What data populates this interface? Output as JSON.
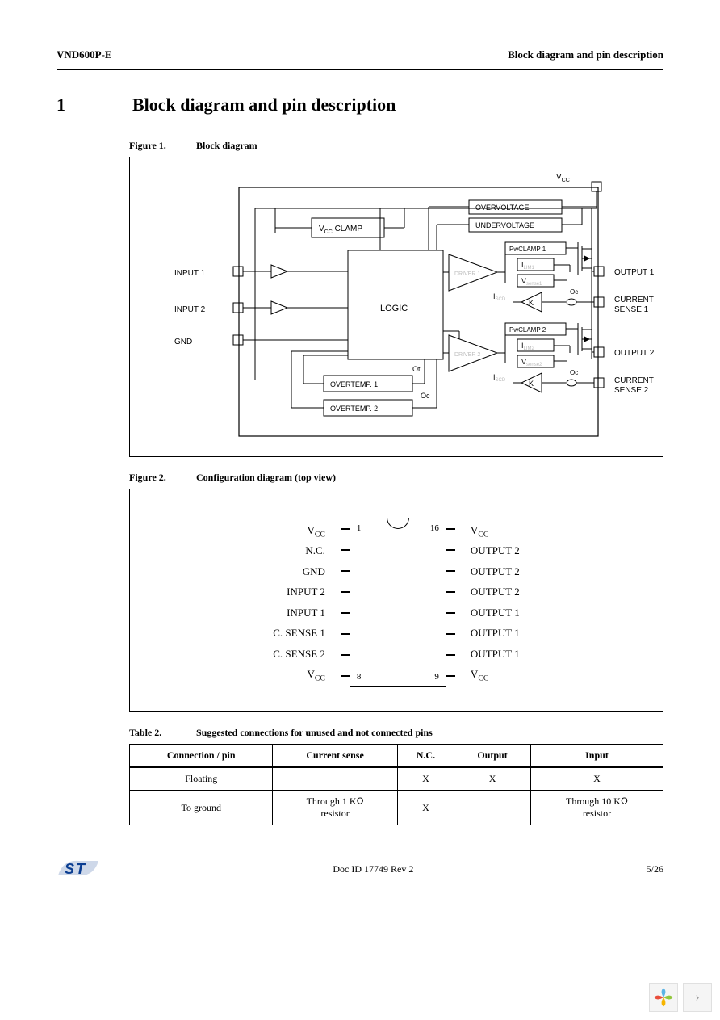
{
  "header": {
    "left": "VND600P-E",
    "right": "Block diagram and pin description"
  },
  "section": {
    "num": "1",
    "title": "Block diagram and pin description"
  },
  "figure1": {
    "label": "Figure 1.",
    "title": "Block diagram",
    "colors": {
      "line": "#000000",
      "faint": "#bbbbbb",
      "bg": "#ffffff"
    },
    "labels": {
      "vcc_top": "V",
      "vcc_sub": "CC",
      "vcc_clamp": "V",
      "vcc_clamp_sub": "CC",
      "clamp_word": "CLAMP",
      "overvoltage": "OVERVOLTAGE",
      "undervoltage": "UNDERVOLTAGE",
      "logic": "LOGIC",
      "driver1": "DRIVER 1",
      "driver2": "DRIVER 2",
      "pwclamp1": "PwCLAMP 1",
      "pwclamp2": "PwCLAMP 2",
      "i_lim1": "I",
      "i_lim1_sub": "LIM1",
      "i_lim2": "I",
      "i_lim2_sub": "LIM2",
      "v_sense1": "V",
      "v_sense1_sub": "sense1",
      "v_sense2": "V",
      "v_sense2_sub": "sense2",
      "i_scd1": "I",
      "i_scd1_sub": "SCD",
      "i_scd2": "I",
      "i_scd2_sub": "SCD",
      "k1": "K",
      "k2": "K",
      "overtemp1": "OVERTEMP. 1",
      "overtemp2": "OVERTEMP. 2",
      "ot": "Ot",
      "oc1": "Oc",
      "oc2": "Oc",
      "input1": "INPUT 1",
      "input2": "INPUT 2",
      "gnd": "GND",
      "output1": "OUTPUT 1",
      "output2": "OUTPUT 2",
      "csense1a": "CURRENT",
      "csense1b": "SENSE 1",
      "csense2a": "CURRENT",
      "csense2b": "SENSE 2"
    }
  },
  "figure2": {
    "label": "Figure 2.",
    "title": "Configuration diagram (top view)",
    "left_pins": [
      "V<sub>CC</sub>",
      "N.C.",
      "GND",
      "INPUT 2",
      "INPUT 1",
      "C. SENSE 1",
      "C. SENSE 2",
      "V<sub>CC</sub>"
    ],
    "right_pins": [
      "V<sub>CC</sub>",
      "OUTPUT 2",
      "OUTPUT 2",
      "OUTPUT 2",
      "OUTPUT 1",
      "OUTPUT 1",
      "OUTPUT 1",
      "V<sub>CC</sub>"
    ],
    "corner_nums": {
      "tl": "1",
      "tr": "16",
      "bl": "8",
      "br": "9"
    },
    "pin_count_per_side": 8
  },
  "table2": {
    "label": "Table 2.",
    "title": "Suggested connections for unused and not connected pins",
    "columns": [
      "Connection / pin",
      "Current sense",
      "N.C.",
      "Output",
      "Input"
    ],
    "rows": [
      {
        "c0": "Floating",
        "c1": "",
        "c2": "X",
        "c3": "X",
        "c4": "X"
      },
      {
        "c0": "To ground",
        "c1": "Through 1 KΩ resistor",
        "c2": "X",
        "c3": "",
        "c4": "Through 10 KΩ resistor"
      }
    ]
  },
  "footer": {
    "docid": "Doc ID 17749 Rev 2",
    "page": "5/26",
    "logo_text": "ST"
  },
  "floatbar": {
    "icon1_colors": [
      "#5ab4e6",
      "#92c73d",
      "#e94e3b",
      "#f7b500"
    ],
    "arrow": "›"
  }
}
